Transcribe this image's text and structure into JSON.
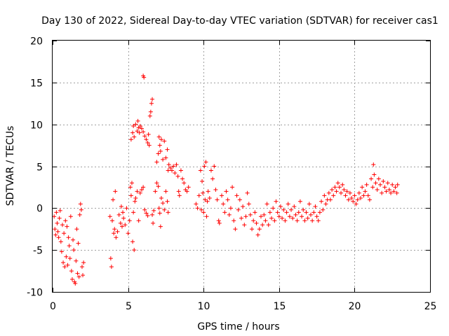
{
  "chart_data": {
    "type": "scatter",
    "title": "Day 130 of 2022, Sidereal Day-to-day VTEC variation (SDTVAR) for receiver cas1",
    "xlabel": "GPS time / hours",
    "ylabel": "SDTVAR / TECUs",
    "xlim": [
      0,
      25
    ],
    "ylim": [
      -10,
      20
    ],
    "x_ticks": [
      0,
      5,
      10,
      15,
      20,
      25
    ],
    "y_ticks": [
      -10,
      -5,
      0,
      5,
      10,
      15,
      20
    ],
    "x_tick_labels": [
      "0",
      "5",
      "10",
      "15",
      "20",
      "25"
    ],
    "y_tick_labels": [
      "-10",
      "-5",
      "0",
      "5",
      "10",
      "15",
      "20"
    ],
    "grid": true,
    "marker": "plus",
    "marker_color": "#ff0000",
    "series": [
      {
        "name": "SDTVAR cas1",
        "points": [
          [
            0.1,
            -1.0
          ],
          [
            0.15,
            -2.5
          ],
          [
            0.2,
            -3.2
          ],
          [
            0.25,
            -0.5
          ],
          [
            0.3,
            -1.8
          ],
          [
            0.35,
            -2.8
          ],
          [
            0.4,
            -3.5
          ],
          [
            0.45,
            -1.2
          ],
          [
            0.5,
            -0.3
          ],
          [
            0.55,
            -4.0
          ],
          [
            0.6,
            -5.2
          ],
          [
            0.65,
            -2.0
          ],
          [
            0.7,
            -6.5
          ],
          [
            0.75,
            -3.0
          ],
          [
            0.8,
            -7.0
          ],
          [
            0.85,
            -1.5
          ],
          [
            0.9,
            -5.8
          ],
          [
            0.95,
            -2.2
          ],
          [
            1.0,
            -6.8
          ],
          [
            1.05,
            -3.5
          ],
          [
            1.1,
            -4.5
          ],
          [
            1.15,
            -6.0
          ],
          [
            1.2,
            -1.0
          ],
          [
            1.25,
            -7.5
          ],
          [
            1.3,
            -8.5
          ],
          [
            1.35,
            -3.8
          ],
          [
            1.4,
            -5.0
          ],
          [
            1.45,
            -8.8
          ],
          [
            1.5,
            -9.0
          ],
          [
            1.55,
            -6.3
          ],
          [
            1.6,
            -2.5
          ],
          [
            1.65,
            -7.8
          ],
          [
            1.7,
            -4.2
          ],
          [
            1.75,
            -8.2
          ],
          [
            1.8,
            -0.8
          ],
          [
            1.85,
            0.5
          ],
          [
            1.9,
            -0.2
          ],
          [
            1.95,
            -7.0
          ],
          [
            2.0,
            -8.0
          ],
          [
            2.05,
            -6.5
          ],
          [
            3.8,
            -1.0
          ],
          [
            3.85,
            -6.0
          ],
          [
            3.9,
            -7.0
          ],
          [
            3.95,
            -1.5
          ],
          [
            4.0,
            1.0
          ],
          [
            4.05,
            -3.0
          ],
          [
            4.1,
            -2.5
          ],
          [
            4.15,
            2.0
          ],
          [
            4.2,
            -3.5
          ],
          [
            4.3,
            -2.8
          ],
          [
            4.4,
            -0.8
          ],
          [
            4.5,
            -1.8
          ],
          [
            4.55,
            0.2
          ],
          [
            4.6,
            -2.2
          ],
          [
            4.65,
            -0.5
          ],
          [
            4.7,
            -1.2
          ],
          [
            4.8,
            -2.0
          ],
          [
            4.9,
            0.0
          ],
          [
            5.0,
            -3.0
          ],
          [
            5.1,
            -1.5
          ],
          [
            5.15,
            2.5
          ],
          [
            5.2,
            1.5
          ],
          [
            5.25,
            3.0
          ],
          [
            5.3,
            -4.0
          ],
          [
            5.35,
            -0.5
          ],
          [
            5.4,
            -5.0
          ],
          [
            5.45,
            0.8
          ],
          [
            5.5,
            1.2
          ],
          [
            5.6,
            2.0
          ],
          [
            5.7,
            -1.5
          ],
          [
            5.8,
            1.8
          ],
          [
            5.9,
            2.2
          ],
          [
            6.0,
            2.5
          ],
          [
            6.1,
            -0.2
          ],
          [
            6.2,
            -0.6
          ],
          [
            6.3,
            -0.9
          ],
          [
            5.2,
            8.2
          ],
          [
            5.3,
            9.0
          ],
          [
            5.35,
            9.8
          ],
          [
            5.4,
            8.5
          ],
          [
            5.5,
            10.0
          ],
          [
            5.6,
            9.2
          ],
          [
            5.65,
            10.4
          ],
          [
            5.7,
            9.6
          ],
          [
            5.75,
            9.0
          ],
          [
            5.8,
            9.8
          ],
          [
            5.9,
            9.5
          ],
          [
            6.0,
            9.1
          ],
          [
            6.1,
            8.6
          ],
          [
            6.2,
            8.2
          ],
          [
            6.3,
            7.8
          ],
          [
            6.35,
            8.8
          ],
          [
            6.4,
            7.5
          ],
          [
            6.45,
            11.0
          ],
          [
            6.5,
            11.5
          ],
          [
            6.55,
            12.5
          ],
          [
            6.6,
            13.0
          ],
          [
            6.0,
            15.8
          ],
          [
            6.05,
            15.6
          ],
          [
            6.6,
            -0.8
          ],
          [
            6.65,
            -1.8
          ],
          [
            6.7,
            -0.3
          ],
          [
            6.8,
            2.0
          ],
          [
            6.9,
            3.0
          ],
          [
            7.0,
            2.6
          ],
          [
            7.05,
            0.0
          ],
          [
            7.1,
            -0.6
          ],
          [
            7.15,
            -2.2
          ],
          [
            7.2,
            1.2
          ],
          [
            7.3,
            0.6
          ],
          [
            7.4,
            -0.2
          ],
          [
            7.5,
            2.0
          ],
          [
            7.6,
            0.8
          ],
          [
            7.65,
            -0.5
          ],
          [
            6.9,
            5.5
          ],
          [
            7.0,
            6.5
          ],
          [
            7.05,
            8.5
          ],
          [
            7.1,
            7.5
          ],
          [
            7.15,
            6.8
          ],
          [
            7.2,
            8.2
          ],
          [
            7.3,
            5.8
          ],
          [
            7.4,
            8.0
          ],
          [
            7.5,
            6.0
          ],
          [
            7.6,
            7.0
          ],
          [
            7.65,
            4.5
          ],
          [
            7.7,
            5.2
          ],
          [
            7.8,
            4.8
          ],
          [
            7.9,
            4.5
          ],
          [
            8.0,
            5.0
          ],
          [
            8.1,
            4.2
          ],
          [
            8.2,
            5.2
          ],
          [
            8.3,
            3.8
          ],
          [
            8.35,
            2.0
          ],
          [
            8.4,
            1.5
          ],
          [
            8.5,
            4.5
          ],
          [
            8.6,
            3.5
          ],
          [
            8.7,
            3.0
          ],
          [
            8.8,
            2.2
          ],
          [
            8.9,
            2.0
          ],
          [
            9.0,
            2.5
          ],
          [
            9.5,
            0.5
          ],
          [
            9.6,
            0.0
          ],
          [
            9.7,
            1.5
          ],
          [
            9.8,
            4.5
          ],
          [
            9.85,
            -0.2
          ],
          [
            9.9,
            3.2
          ],
          [
            9.95,
            1.8
          ],
          [
            10.0,
            -0.5
          ],
          [
            10.05,
            5.0
          ],
          [
            10.1,
            1.0
          ],
          [
            10.15,
            5.5
          ],
          [
            10.2,
            -1.0
          ],
          [
            10.25,
            0.8
          ],
          [
            10.3,
            2.0
          ],
          [
            10.4,
            1.2
          ],
          [
            10.5,
            4.5
          ],
          [
            10.6,
            3.5
          ],
          [
            10.7,
            5.0
          ],
          [
            10.8,
            2.2
          ],
          [
            10.9,
            1.0
          ],
          [
            11.0,
            -1.5
          ],
          [
            11.05,
            -1.8
          ],
          [
            11.2,
            1.5
          ],
          [
            11.3,
            0.5
          ],
          [
            11.4,
            -0.5
          ],
          [
            11.5,
            2.0
          ],
          [
            11.6,
            1.0
          ],
          [
            11.7,
            -0.8
          ],
          [
            11.8,
            0.0
          ],
          [
            11.9,
            2.5
          ],
          [
            12.0,
            -1.5
          ],
          [
            12.1,
            -2.5
          ],
          [
            12.2,
            1.5
          ],
          [
            12.3,
            -0.2
          ],
          [
            12.4,
            1.0
          ],
          [
            12.5,
            -1.2
          ],
          [
            12.6,
            0.2
          ],
          [
            12.7,
            -2.0
          ],
          [
            12.8,
            -1.0
          ],
          [
            12.9,
            1.8
          ],
          [
            13.0,
            0.5
          ],
          [
            13.1,
            -0.8
          ],
          [
            13.2,
            -2.5
          ],
          [
            13.3,
            -1.5
          ],
          [
            13.4,
            -0.5
          ],
          [
            13.5,
            -1.8
          ],
          [
            13.6,
            -3.2
          ],
          [
            13.7,
            -2.5
          ],
          [
            13.8,
            -1.0
          ],
          [
            13.9,
            -2.0
          ],
          [
            14.0,
            -0.8
          ],
          [
            14.1,
            -1.5
          ],
          [
            14.2,
            0.5
          ],
          [
            14.3,
            -2.0
          ],
          [
            14.4,
            -0.5
          ],
          [
            14.5,
            -1.2
          ],
          [
            14.6,
            0.0
          ],
          [
            14.7,
            -1.5
          ],
          [
            14.8,
            0.8
          ],
          [
            14.9,
            -0.5
          ],
          [
            15.0,
            -1.0
          ],
          [
            15.1,
            0.2
          ],
          [
            15.2,
            -1.2
          ],
          [
            15.3,
            -0.2
          ],
          [
            15.4,
            -1.5
          ],
          [
            15.5,
            -0.5
          ],
          [
            15.6,
            0.5
          ],
          [
            15.7,
            -1.0
          ],
          [
            15.8,
            -0.2
          ],
          [
            15.9,
            -1.2
          ],
          [
            16.0,
            0.2
          ],
          [
            16.1,
            -0.8
          ],
          [
            16.2,
            -1.5
          ],
          [
            16.3,
            -0.5
          ],
          [
            16.4,
            0.8
          ],
          [
            16.5,
            -1.0
          ],
          [
            16.6,
            -0.2
          ],
          [
            16.7,
            -1.5
          ],
          [
            16.8,
            -0.5
          ],
          [
            16.9,
            -1.2
          ],
          [
            17.0,
            0.5
          ],
          [
            17.1,
            -0.8
          ],
          [
            17.2,
            -1.5
          ],
          [
            17.3,
            -0.5
          ],
          [
            17.4,
            0.2
          ],
          [
            17.5,
            -1.0
          ],
          [
            17.6,
            -1.5
          ],
          [
            17.7,
            -0.5
          ],
          [
            17.8,
            0.8
          ],
          [
            17.9,
            -0.2
          ],
          [
            18.0,
            1.5
          ],
          [
            18.1,
            0.5
          ],
          [
            18.2,
            1.0
          ],
          [
            18.3,
            1.8
          ],
          [
            18.4,
            1.0
          ],
          [
            18.5,
            2.2
          ],
          [
            18.6,
            1.5
          ],
          [
            18.7,
            2.5
          ],
          [
            18.8,
            2.0
          ],
          [
            18.9,
            3.0
          ],
          [
            19.0,
            2.5
          ],
          [
            19.1,
            1.8
          ],
          [
            19.2,
            2.8
          ],
          [
            19.3,
            2.2
          ],
          [
            19.4,
            1.5
          ],
          [
            19.5,
            2.0
          ],
          [
            19.6,
            1.0
          ],
          [
            19.7,
            1.8
          ],
          [
            19.8,
            1.2
          ],
          [
            19.9,
            0.8
          ],
          [
            20.0,
            1.5
          ],
          [
            20.1,
            0.5
          ],
          [
            20.2,
            1.0
          ],
          [
            20.3,
            1.8
          ],
          [
            20.4,
            1.2
          ],
          [
            20.5,
            2.5
          ],
          [
            20.6,
            1.5
          ],
          [
            20.7,
            2.0
          ],
          [
            20.8,
            2.8
          ],
          [
            20.9,
            1.5
          ],
          [
            21.0,
            1.0
          ],
          [
            21.1,
            3.5
          ],
          [
            21.2,
            2.5
          ],
          [
            21.25,
            5.2
          ],
          [
            21.3,
            4.0
          ],
          [
            21.4,
            3.0
          ],
          [
            21.5,
            2.2
          ],
          [
            21.6,
            3.5
          ],
          [
            21.7,
            2.8
          ],
          [
            21.8,
            1.8
          ],
          [
            21.9,
            3.2
          ],
          [
            22.0,
            2.5
          ],
          [
            22.1,
            2.0
          ],
          [
            22.2,
            3.0
          ],
          [
            22.3,
            2.2
          ],
          [
            22.4,
            1.8
          ],
          [
            22.5,
            2.8
          ],
          [
            22.6,
            2.0
          ],
          [
            22.7,
            2.5
          ],
          [
            22.8,
            1.8
          ],
          [
            22.85,
            2.8
          ]
        ]
      }
    ]
  }
}
